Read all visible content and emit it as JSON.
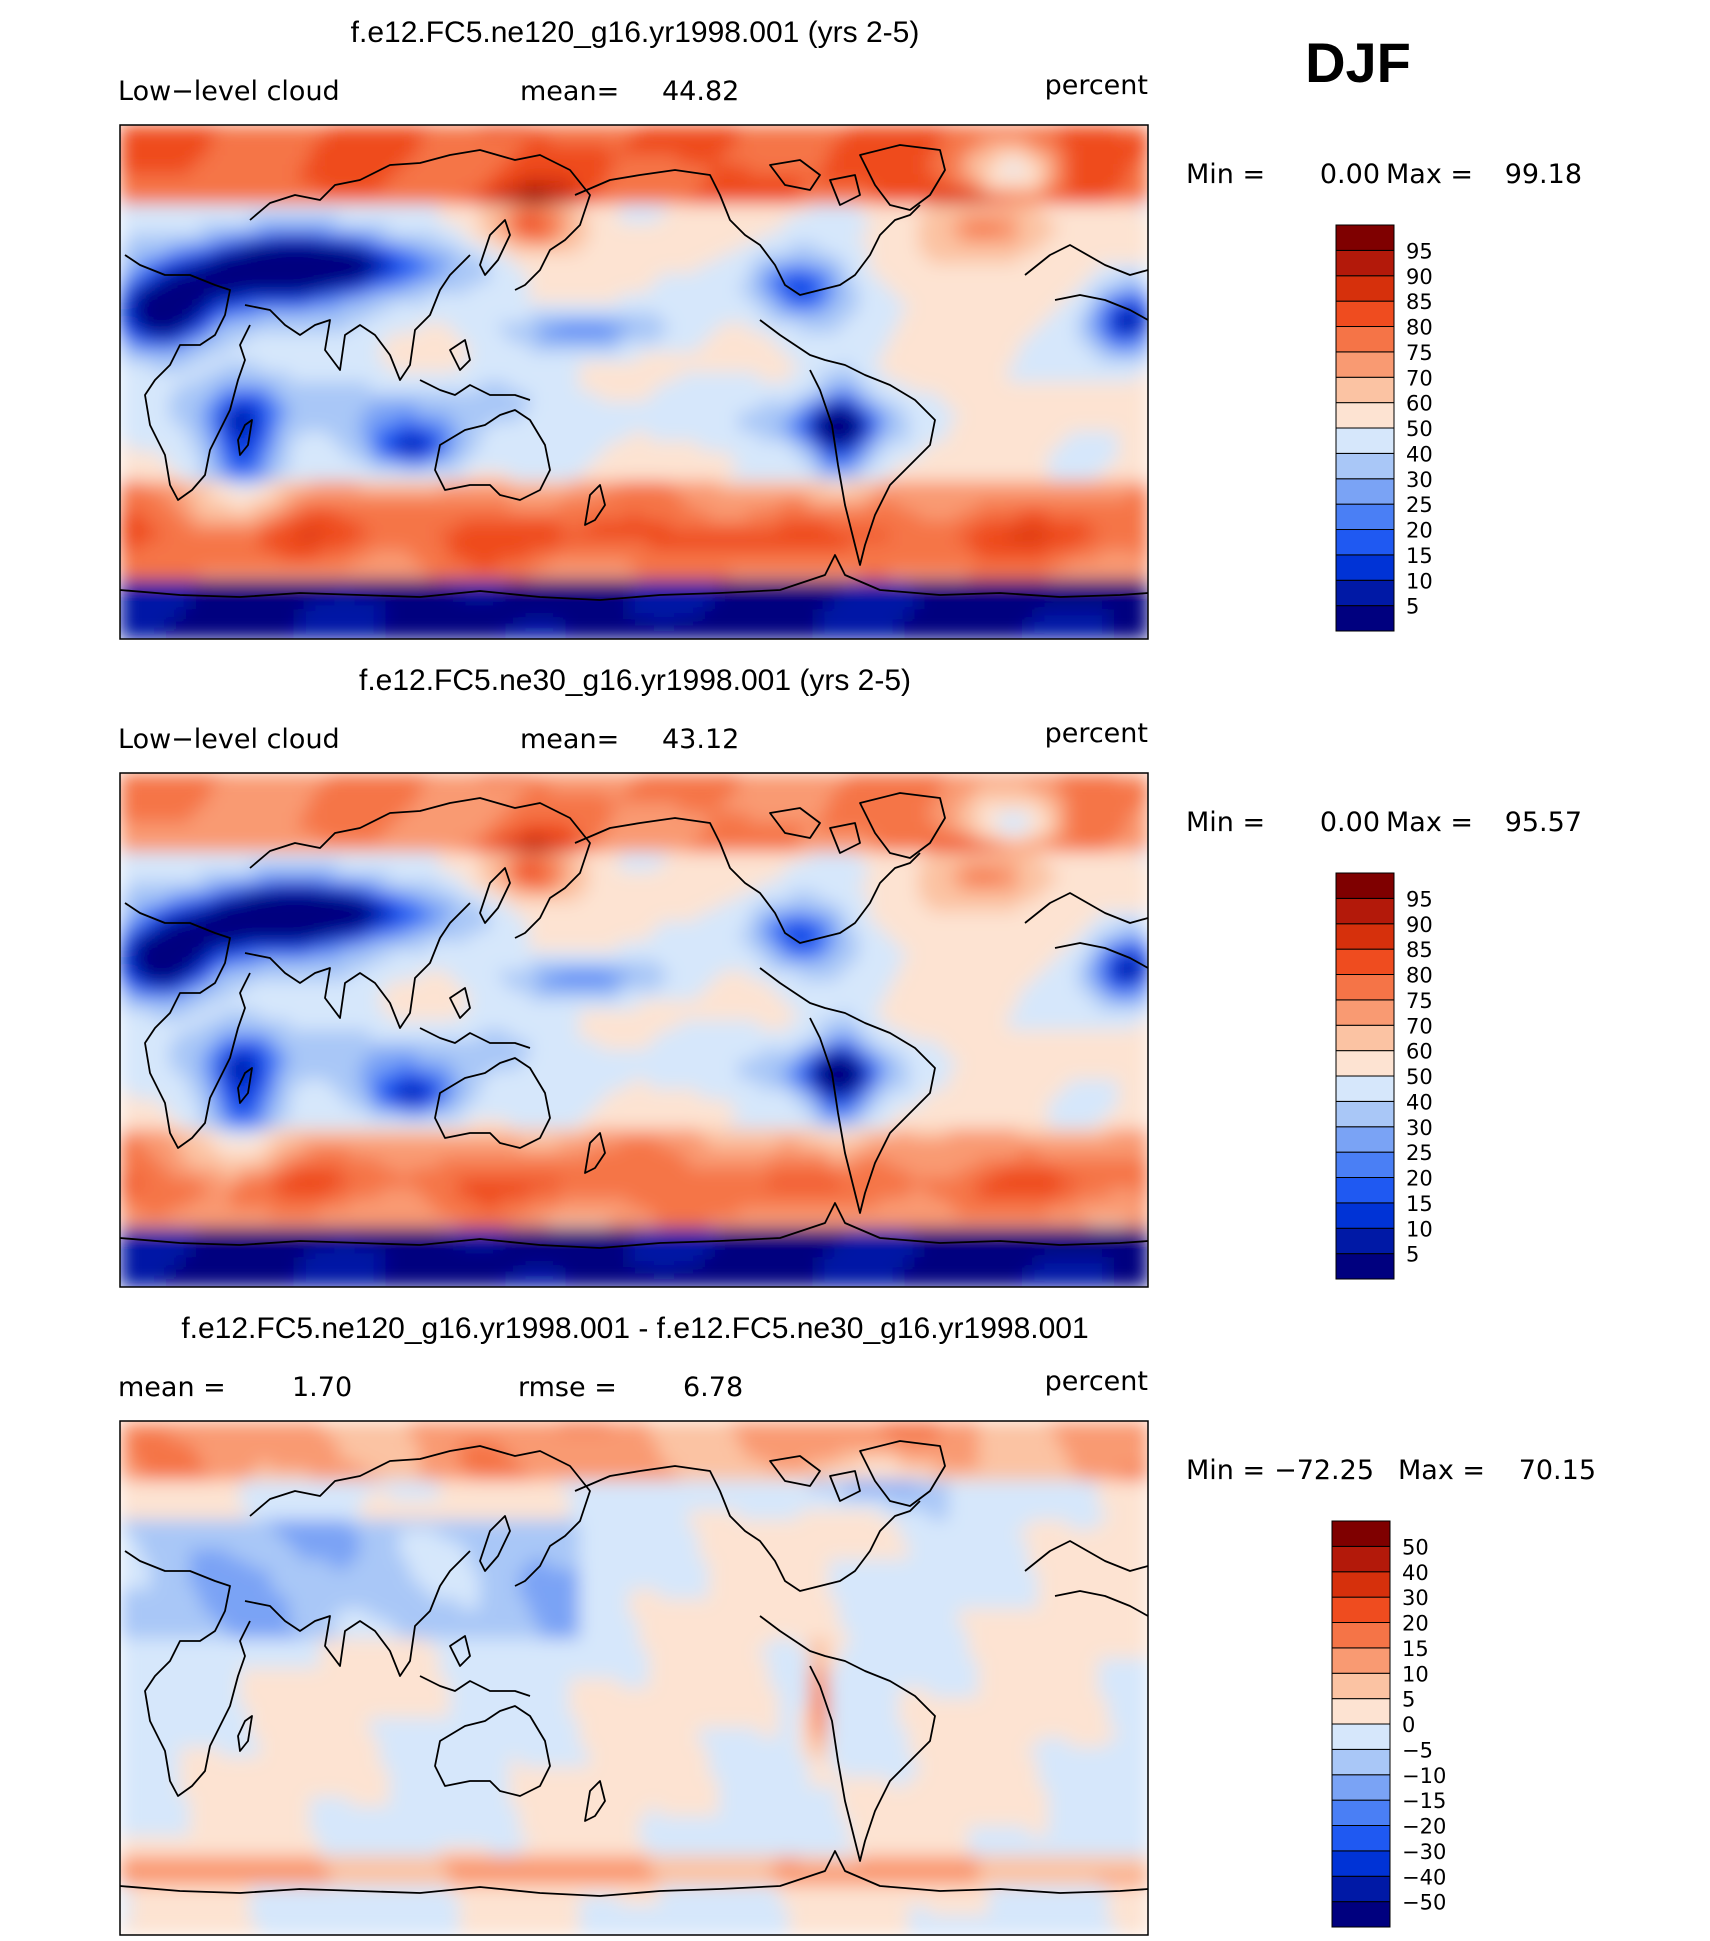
{
  "season": "DJF",
  "colors": {
    "levels": [
      "#00007f",
      "#0019a6",
      "#0033d6",
      "#1f59f2",
      "#4a7ff5",
      "#7aa3f5",
      "#a9c7f7",
      "#d6e7fb",
      "#fde3d2",
      "#fbc3a3",
      "#f99a72",
      "#f57447",
      "#ef4c1f",
      "#d6300c",
      "#b3190a",
      "#7f0000"
    ],
    "coastline": "#000000"
  },
  "chart_data": [
    {
      "type": "heatmap",
      "title": "f.e12.FC5.ne120_g16.yr1998.001 (yrs 2-5)",
      "left_label": "Low−level cloud",
      "stat_label": "mean=",
      "stat_value": "44.82",
      "units": "percent",
      "min_label": "Min =",
      "min_value": "0.00",
      "max_label": "Max =",
      "max_value": "99.18",
      "colorbar_labels": [
        "95",
        "90",
        "85",
        "80",
        "75",
        "70",
        "60",
        "50",
        "40",
        "30",
        "25",
        "20",
        "15",
        "10",
        "5"
      ],
      "field": {
        "polar_south": 4,
        "storm_south": 82,
        "storm_north": 80,
        "subtrop_west": 25,
        "subtrop_east": 50
      }
    },
    {
      "type": "heatmap",
      "title": "f.e12.FC5.ne30_g16.yr1998.001 (yrs 2-5)",
      "left_label": "Low−level cloud",
      "stat_label": "mean=",
      "stat_value": "43.12",
      "units": "percent",
      "min_label": "Min =",
      "min_value": "0.00",
      "max_label": "Max =",
      "max_value": "95.57",
      "colorbar_labels": [
        "95",
        "90",
        "85",
        "80",
        "75",
        "70",
        "60",
        "50",
        "40",
        "30",
        "25",
        "20",
        "15",
        "10",
        "5"
      ],
      "field": {
        "polar_south": 4,
        "storm_south": 80,
        "storm_north": 75,
        "subtrop_west": 22,
        "subtrop_east": 45
      }
    },
    {
      "type": "heatmap",
      "title": "f.e12.FC5.ne120_g16.yr1998.001 - f.e12.FC5.ne30_g16.yr1998.001",
      "left_label": "mean =",
      "left_value": "1.70",
      "stat_label": "rmse =",
      "stat_value": "6.78",
      "units": "percent",
      "min_label": "Min =",
      "min_value": "−72.25",
      "max_label": "Max =",
      "max_value": "70.15",
      "colorbar_labels": [
        "50",
        "40",
        "30",
        "20",
        "15",
        "10",
        "5",
        "0",
        "−5",
        "−10",
        "−15",
        "−20",
        "−30",
        "−40",
        "−50"
      ],
      "field": {
        "difference": true
      }
    }
  ]
}
